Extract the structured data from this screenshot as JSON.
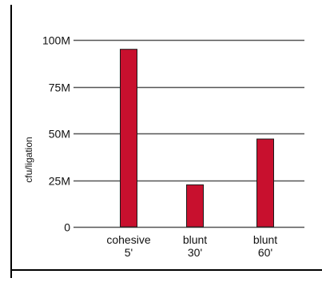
{
  "chart_data": {
    "type": "bar",
    "title": "",
    "xlabel": "",
    "ylabel": "cfu/ligation",
    "categories": [
      [
        "cohesive",
        "5'"
      ],
      [
        "blunt",
        "30'"
      ],
      [
        "blunt",
        "60'"
      ]
    ],
    "values": [
      95000000,
      22500000,
      47000000
    ],
    "ylim": [
      0,
      100000000
    ],
    "yticks": [
      0,
      25000000,
      50000000,
      75000000,
      100000000
    ],
    "ytick_labels": [
      "0",
      "25M",
      "50M",
      "75M",
      "100M"
    ],
    "grid": true,
    "legend": "none",
    "colors": {
      "bar": "#c8102e",
      "bar_stroke": "#1a1a1a",
      "grid": "#555555",
      "border": "#000000",
      "text": "#111111"
    }
  }
}
